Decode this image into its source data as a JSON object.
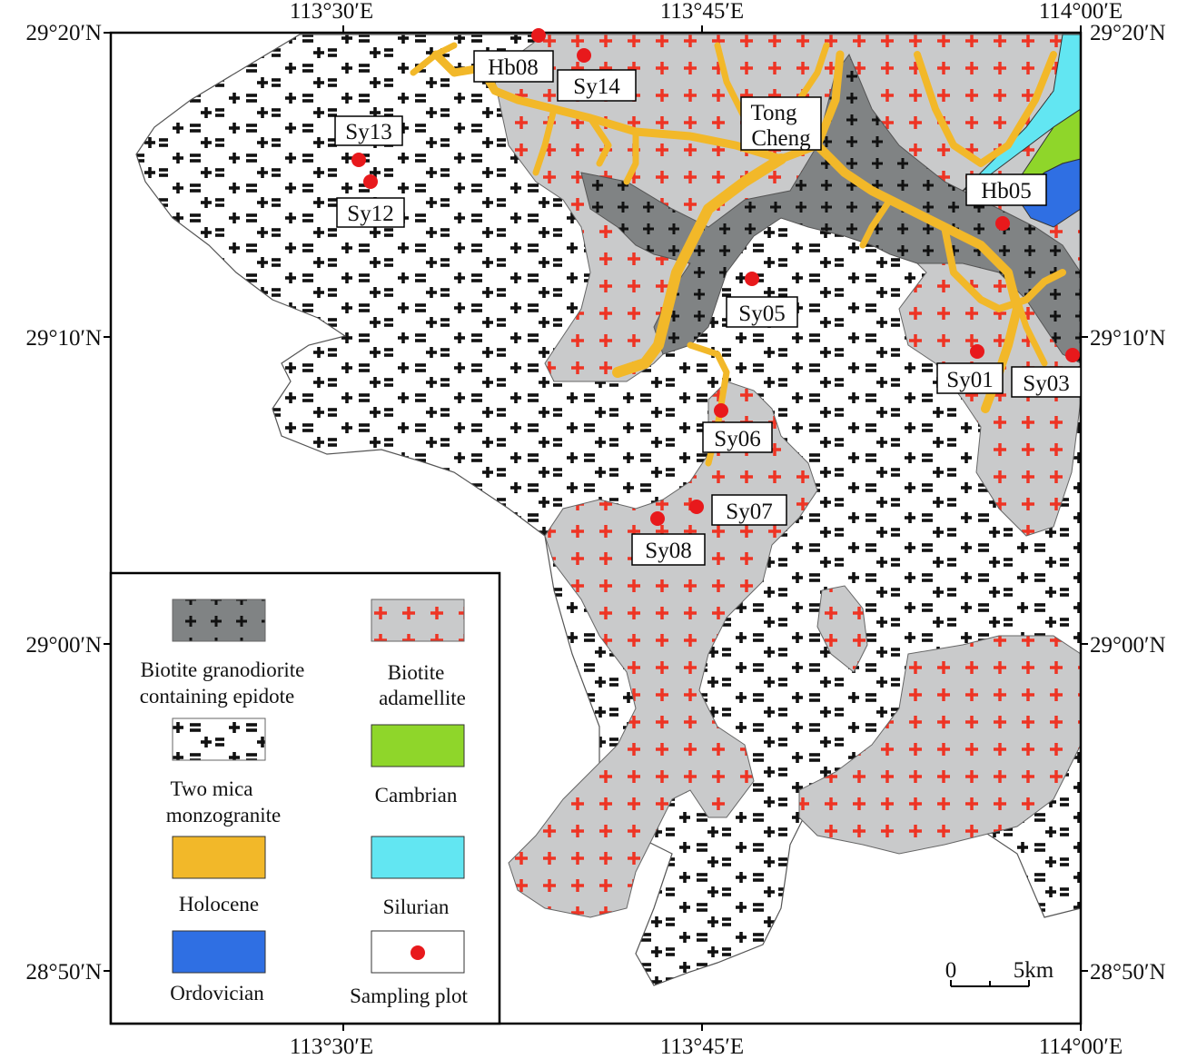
{
  "colors": {
    "background": "#ffffff",
    "frame": "#000000",
    "two_mica_pattern": "#111111",
    "adamellite_fill": "#c9cacb",
    "adamellite_pattern": "#ee3424",
    "granodiorite_fill": "#808384",
    "holocene": "#f2b829",
    "silurian": "#62e6f2",
    "cambrian": "#8fd62a",
    "ordovician": "#2f6fe3",
    "sample_point": "#e8191c"
  },
  "axes": {
    "top_lon_labels": [
      "113°30′E",
      "113°45′E",
      "114°00′E"
    ],
    "bottom_lon_labels": [
      "113°30′E",
      "113°45′E",
      "114°00′E"
    ],
    "left_lat_labels": [
      "29°20′N",
      "29°10′N",
      "29°00′N",
      "28°50′N"
    ],
    "right_lat_labels": [
      "29°20′N",
      "29°10′N",
      "29°00′N",
      "28°50′N"
    ]
  },
  "town": {
    "line1": "Tong",
    "line2": "Cheng"
  },
  "samples": [
    "Hb08",
    "Sy14",
    "Sy13",
    "Sy12",
    "Hb05",
    "Sy05",
    "Sy01",
    "Sy03",
    "Sy06",
    "Sy07",
    "Sy08"
  ],
  "legend": {
    "granodiorite_line1": "Biotite granodiorite",
    "granodiorite_line2": "containing epidote",
    "adamellite_line1": "Biotite",
    "adamellite_line2": "adamellite",
    "monzogranite_line1": "Two mica",
    "monzogranite_line2": "monzogranite",
    "cambrian": "Cambrian",
    "holocene": "Holocene",
    "silurian": "Silurian",
    "ordovician": "Ordovician",
    "sampling": "Sampling plot"
  },
  "scale_bar": {
    "zero": "0",
    "distance": "5km"
  }
}
